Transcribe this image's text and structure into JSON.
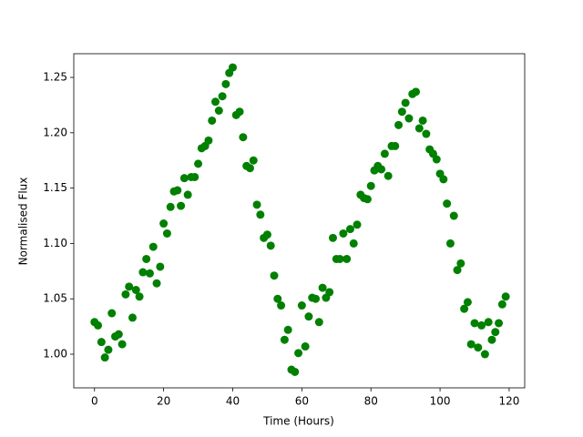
{
  "chart_data": {
    "type": "scatter",
    "x_label": "Time (Hours)",
    "y_label": "Normalised Flux",
    "x": [
      0,
      1,
      2,
      3,
      4,
      5,
      6,
      7,
      8,
      9,
      10,
      11,
      12,
      13,
      14,
      15,
      16,
      17,
      18,
      19,
      20,
      21,
      22,
      23,
      24,
      25,
      26,
      27,
      28,
      29,
      30,
      31,
      32,
      33,
      34,
      35,
      36,
      37,
      38,
      39,
      40,
      41,
      42,
      43,
      44,
      45,
      46,
      47,
      48,
      49,
      50,
      51,
      52,
      53,
      54,
      55,
      56,
      57,
      58,
      59,
      60,
      61,
      62,
      63,
      64,
      65,
      66,
      67,
      68,
      69,
      70,
      71,
      72,
      73,
      74,
      75,
      76,
      77,
      78,
      79,
      80,
      81,
      82,
      83,
      84,
      85,
      86,
      87,
      88,
      89,
      90,
      91,
      92,
      93,
      94,
      95,
      96,
      97,
      98,
      99,
      100,
      101,
      102,
      103,
      104,
      105,
      106,
      107,
      108,
      109,
      110,
      111,
      112,
      113,
      114,
      115,
      116,
      117,
      118,
      119
    ],
    "values": [
      1.029,
      1.026,
      1.011,
      0.997,
      1.004,
      1.037,
      1.016,
      1.018,
      1.009,
      1.054,
      1.061,
      1.033,
      1.058,
      1.052,
      1.074,
      1.086,
      1.073,
      1.097,
      1.064,
      1.079,
      1.118,
      1.109,
      1.133,
      1.147,
      1.148,
      1.134,
      1.159,
      1.144,
      1.16,
      1.16,
      1.172,
      1.186,
      1.188,
      1.193,
      1.211,
      1.228,
      1.22,
      1.233,
      1.244,
      1.254,
      1.259,
      1.216,
      1.219,
      1.196,
      1.17,
      1.168,
      1.175,
      1.135,
      1.126,
      1.105,
      1.108,
      1.098,
      1.071,
      1.05,
      1.044,
      1.013,
      1.022,
      0.986,
      0.984,
      1.001,
      1.044,
      1.007,
      1.034,
      1.051,
      1.05,
      1.029,
      1.06,
      1.051,
      1.056,
      1.105,
      1.086,
      1.086,
      1.109,
      1.086,
      1.113,
      1.1,
      1.117,
      1.144,
      1.141,
      1.14,
      1.152,
      1.166,
      1.17,
      1.167,
      1.181,
      1.161,
      1.188,
      1.188,
      1.207,
      1.219,
      1.227,
      1.213,
      1.235,
      1.237,
      1.204,
      1.211,
      1.199,
      1.185,
      1.181,
      1.176,
      1.163,
      1.158,
      1.136,
      1.1,
      1.125,
      1.076,
      1.082,
      1.041,
      1.047,
      1.009,
      1.028,
      1.006,
      1.026,
      1.0,
      1.029,
      1.013,
      1.02,
      1.028,
      1.045,
      1.052
    ],
    "color": "green",
    "xlim": [
      -6,
      124.5
    ],
    "xticks": [
      0,
      20,
      40,
      60,
      80,
      100,
      120
    ],
    "ylim": [
      0.9696,
      1.2714
    ],
    "yticks": [
      {
        "value": 1.0,
        "label": "1.00"
      },
      1.05,
      {
        "value": 1.1,
        "label": "1.10"
      },
      1.15,
      {
        "value": 1.2,
        "label": "1.20"
      },
      1.25
    ]
  }
}
